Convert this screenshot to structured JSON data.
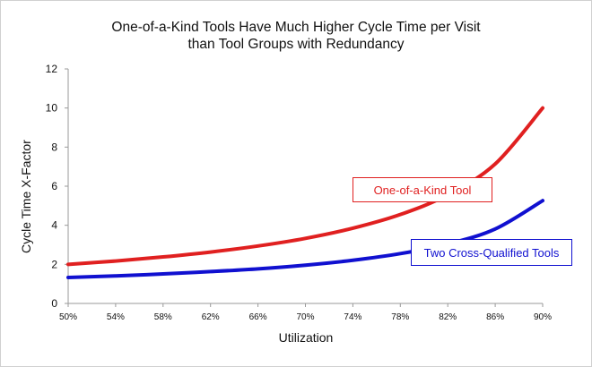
{
  "chart_data": {
    "type": "line",
    "title_line1": "One-of-a-Kind Tools Have Much Higher Cycle Time per Visit",
    "title_line2": "than Tool Groups with Redundancy",
    "xlabel": "Utilization",
    "ylabel": "Cycle Time X-Factor",
    "x_ticks": [
      "50%",
      "54%",
      "58%",
      "62%",
      "66%",
      "70%",
      "74%",
      "78%",
      "82%",
      "86%",
      "90%"
    ],
    "x": [
      0.5,
      0.54,
      0.58,
      0.62,
      0.66,
      0.7,
      0.74,
      0.78,
      0.82,
      0.86,
      0.9
    ],
    "xlim": [
      0.5,
      0.9
    ],
    "ylim": [
      0,
      12
    ],
    "y_ticks": [
      "0",
      "2",
      "4",
      "6",
      "8",
      "10",
      "12"
    ],
    "grid": false,
    "series": [
      {
        "name": "One-of-a-Kind Tool",
        "color": "#e02020",
        "values": [
          2.0,
          2.17,
          2.38,
          2.63,
          2.94,
          3.33,
          3.85,
          4.55,
          5.56,
          7.14,
          10.0
        ]
      },
      {
        "name": "Two Cross-Qualified Tools",
        "color": "#1010d0",
        "values": [
          1.33,
          1.41,
          1.51,
          1.63,
          1.77,
          1.96,
          2.21,
          2.55,
          3.04,
          3.81,
          5.26
        ]
      }
    ]
  }
}
